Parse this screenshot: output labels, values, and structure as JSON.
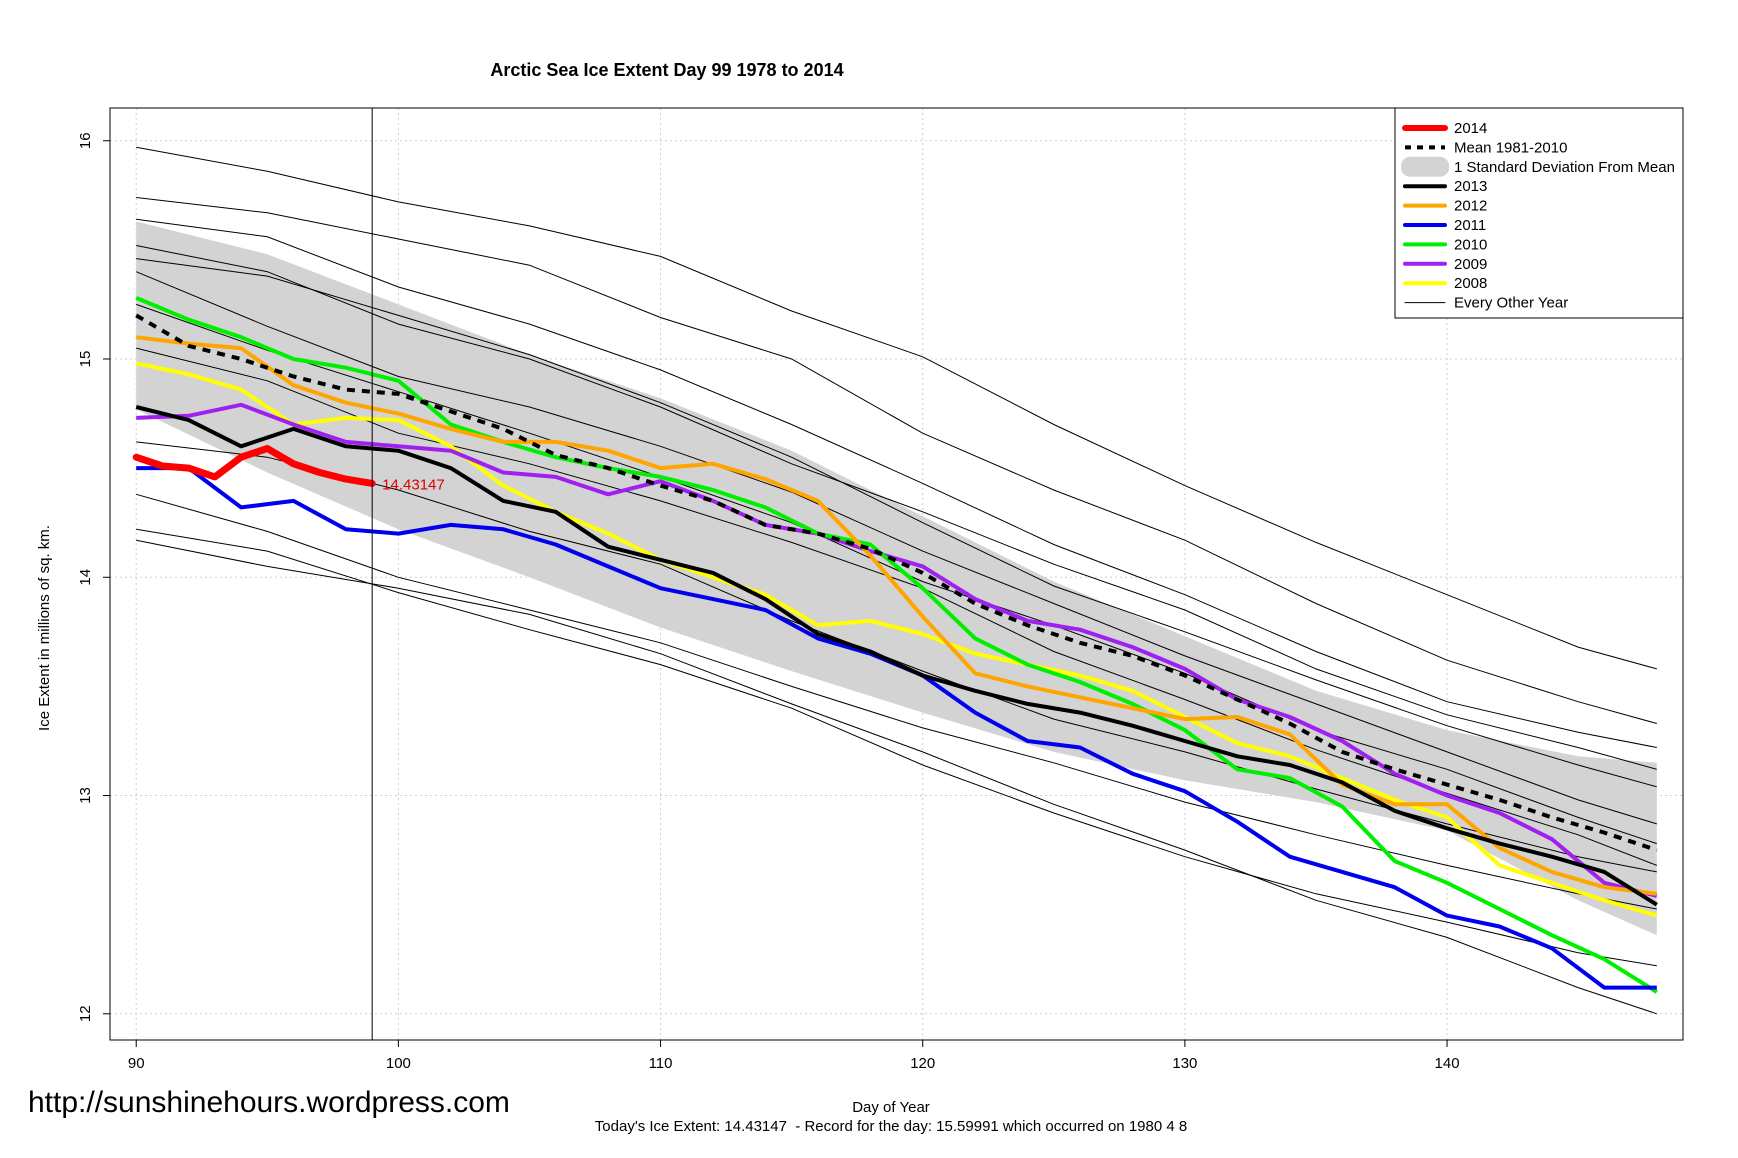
{
  "chart_data": {
    "type": "line",
    "title": "Arctic Sea Ice Extent Day 99 1978 to 2014",
    "xlabel": "Day of Year",
    "ylabel": "Ice Extent in millions of sq. km.",
    "xlim": [
      89,
      149
    ],
    "ylim": [
      11.88,
      16.15
    ],
    "x_ticks": [
      90,
      100,
      110,
      120,
      130,
      140
    ],
    "y_ticks": [
      12,
      13,
      14,
      15,
      16
    ],
    "grid": true,
    "legend_position": "top-right",
    "current_day": 99,
    "current_value_label": "14.43147",
    "footer": "Today's Ice Extent: 14.43147  - Record for the day: 15.59991 which occurred on 1980 4 8",
    "watermark": "http://sunshinehours.wordpress.com",
    "std_band": {
      "name": "1 Standard Deviation From Mean",
      "x": [
        90,
        95,
        100,
        105,
        110,
        115,
        120,
        125,
        130,
        135,
        140,
        145,
        148
      ],
      "upper": [
        15.63,
        15.48,
        15.25,
        15.02,
        14.82,
        14.58,
        14.28,
        13.98,
        13.73,
        13.48,
        13.3,
        13.18,
        13.15
      ],
      "lower": [
        14.77,
        14.48,
        14.22,
        14.0,
        13.77,
        13.57,
        13.38,
        13.2,
        13.07,
        12.97,
        12.84,
        12.52,
        12.36
      ]
    },
    "series": [
      {
        "name": "Every Other Year",
        "color": "#000000",
        "role": "other",
        "lines": [
          {
            "x": [
              90,
              95,
              100,
              105,
              110,
              115,
              120,
              125,
              130,
              135,
              140,
              145,
              148
            ],
            "y": [
              15.97,
              15.86,
              15.72,
              15.61,
              15.47,
              15.22,
              15.01,
              14.7,
              14.42,
              14.16,
              13.92,
              13.68,
              13.58
            ]
          },
          {
            "x": [
              90,
              95,
              100,
              105,
              110,
              115,
              120,
              125,
              130,
              135,
              140,
              145,
              148
            ],
            "y": [
              15.74,
              15.67,
              15.55,
              15.43,
              15.19,
              15.0,
              14.66,
              14.4,
              14.17,
              13.88,
              13.62,
              13.43,
              13.33
            ]
          },
          {
            "x": [
              90,
              95,
              100,
              105,
              110,
              115,
              120,
              125,
              130,
              135,
              140,
              145,
              148
            ],
            "y": [
              15.64,
              15.56,
              15.33,
              15.16,
              14.95,
              14.7,
              14.43,
              14.15,
              13.92,
              13.66,
              13.43,
              13.29,
              13.22
            ]
          },
          {
            "x": [
              90,
              95,
              100,
              105,
              110,
              115,
              120,
              125,
              130,
              135,
              140,
              145,
              148
            ],
            "y": [
              15.52,
              15.4,
              15.16,
              15.0,
              14.78,
              14.52,
              14.3,
              14.06,
              13.85,
              13.58,
              13.37,
              13.22,
              13.12
            ]
          },
          {
            "x": [
              90,
              95,
              100,
              105,
              110,
              115,
              120,
              125,
              130,
              135,
              140,
              145,
              148
            ],
            "y": [
              15.46,
              15.38,
              15.2,
              15.02,
              14.8,
              14.55,
              14.25,
              13.96,
              13.75,
              13.53,
              13.32,
              13.14,
              13.04
            ]
          },
          {
            "x": [
              90,
              95,
              100,
              105,
              110,
              115,
              120,
              125,
              130,
              135,
              140,
              145,
              148
            ],
            "y": [
              15.4,
              15.15,
              14.92,
              14.78,
              14.6,
              14.39,
              14.12,
              13.88,
              13.64,
              13.42,
              13.2,
              12.98,
              12.87
            ]
          },
          {
            "x": [
              90,
              95,
              100,
              105,
              110,
              115,
              120,
              125,
              130,
              135,
              140,
              145,
              148
            ],
            "y": [
              15.25,
              15.04,
              14.85,
              14.66,
              14.46,
              14.25,
              13.98,
              13.78,
              13.56,
              13.3,
              13.12,
              12.9,
              12.78
            ]
          },
          {
            "x": [
              90,
              95,
              100,
              105,
              110,
              115,
              120,
              125,
              130,
              135,
              140,
              145,
              148
            ],
            "y": [
              15.05,
              14.9,
              14.66,
              14.52,
              14.35,
              14.16,
              13.95,
              13.66,
              13.44,
              13.21,
              13.01,
              12.82,
              12.68
            ]
          },
          {
            "x": [
              90,
              95,
              100,
              105,
              110,
              115,
              120,
              125,
              130,
              135,
              140,
              145,
              148
            ],
            "y": [
              14.62,
              14.55,
              14.4,
              14.21,
              14.06,
              13.8,
              13.57,
              13.35,
              13.2,
              13.03,
              12.87,
              12.72,
              12.65
            ]
          },
          {
            "x": [
              90,
              95,
              100,
              105,
              110,
              115,
              120,
              125,
              130,
              135,
              140,
              145,
              148
            ],
            "y": [
              14.38,
              14.21,
              14.0,
              13.85,
              13.7,
              13.5,
              13.31,
              13.15,
              12.97,
              12.82,
              12.68,
              12.55,
              12.48
            ]
          },
          {
            "x": [
              90,
              95,
              100,
              105,
              110,
              115,
              120,
              125,
              130,
              135,
              140,
              145,
              148
            ],
            "y": [
              14.22,
              14.12,
              13.93,
              13.76,
              13.6,
              13.4,
              13.14,
              12.92,
              12.72,
              12.55,
              12.42,
              12.28,
              12.22
            ]
          },
          {
            "x": [
              90,
              95,
              100,
              105,
              110,
              115,
              120,
              125,
              130,
              135,
              140,
              145,
              148
            ],
            "y": [
              14.17,
              14.05,
              13.95,
              13.83,
              13.65,
              13.42,
              13.2,
              12.96,
              12.75,
              12.52,
              12.35,
              12.12,
              12.0
            ]
          }
        ]
      },
      {
        "name": "Mean 1981-2010",
        "color": "#000000",
        "role": "mean",
        "x": [
          90,
          92,
          94,
          96,
          98,
          100,
          102,
          104,
          106,
          108,
          110,
          112,
          114,
          116,
          118,
          120,
          122,
          124,
          126,
          128,
          130,
          132,
          134,
          136,
          138,
          140,
          142,
          144,
          146,
          148
        ],
        "y": [
          15.2,
          15.06,
          15.0,
          14.92,
          14.86,
          14.84,
          14.76,
          14.68,
          14.56,
          14.5,
          14.42,
          14.35,
          14.24,
          14.2,
          14.13,
          14.02,
          13.88,
          13.78,
          13.7,
          13.64,
          13.55,
          13.44,
          13.33,
          13.2,
          13.12,
          13.05,
          12.98,
          12.9,
          12.83,
          12.75
        ]
      },
      {
        "name": "2008",
        "color": "#ffff00",
        "role": "highlight",
        "x": [
          90,
          92,
          94,
          96,
          98,
          100,
          102,
          104,
          106,
          108,
          110,
          112,
          114,
          116,
          118,
          120,
          122,
          124,
          126,
          128,
          130,
          132,
          134,
          136,
          138,
          140,
          142,
          144,
          146,
          148
        ],
        "y": [
          14.98,
          14.93,
          14.86,
          14.7,
          14.73,
          14.72,
          14.6,
          14.42,
          14.3,
          14.2,
          14.08,
          14.0,
          13.92,
          13.78,
          13.8,
          13.74,
          13.65,
          13.6,
          13.55,
          13.48,
          13.36,
          13.24,
          13.18,
          13.08,
          12.98,
          12.9,
          12.68,
          12.6,
          12.52,
          12.45
        ]
      },
      {
        "name": "2009",
        "color": "#a020f0",
        "role": "highlight",
        "x": [
          90,
          92,
          94,
          96,
          98,
          100,
          102,
          104,
          106,
          108,
          110,
          112,
          114,
          116,
          118,
          120,
          122,
          124,
          126,
          128,
          130,
          132,
          134,
          136,
          138,
          140,
          142,
          144,
          146,
          148
        ],
        "y": [
          14.73,
          14.74,
          14.79,
          14.7,
          14.62,
          14.6,
          14.58,
          14.48,
          14.46,
          14.38,
          14.44,
          14.35,
          14.24,
          14.2,
          14.12,
          14.05,
          13.9,
          13.8,
          13.76,
          13.68,
          13.58,
          13.44,
          13.36,
          13.25,
          13.1,
          13.0,
          12.92,
          12.8,
          12.6,
          12.54
        ]
      },
      {
        "name": "2010",
        "color": "#00ee00",
        "role": "highlight",
        "x": [
          90,
          92,
          94,
          96,
          98,
          100,
          102,
          104,
          106,
          108,
          110,
          112,
          114,
          116,
          118,
          120,
          122,
          124,
          126,
          128,
          130,
          132,
          134,
          136,
          138,
          140,
          142,
          144,
          146,
          148
        ],
        "y": [
          15.28,
          15.18,
          15.1,
          15.0,
          14.96,
          14.9,
          14.7,
          14.62,
          14.55,
          14.5,
          14.46,
          14.4,
          14.32,
          14.2,
          14.15,
          13.95,
          13.72,
          13.6,
          13.52,
          13.42,
          13.3,
          13.12,
          13.08,
          12.95,
          12.7,
          12.6,
          12.48,
          12.36,
          12.25,
          12.1
        ]
      },
      {
        "name": "2011",
        "color": "#0000ee",
        "role": "highlight",
        "x": [
          90,
          92,
          94,
          96,
          98,
          100,
          102,
          104,
          106,
          108,
          110,
          112,
          114,
          116,
          118,
          120,
          122,
          124,
          126,
          128,
          130,
          132,
          134,
          136,
          138,
          140,
          142,
          144,
          146,
          148
        ],
        "y": [
          14.5,
          14.5,
          14.32,
          14.35,
          14.22,
          14.2,
          14.24,
          14.22,
          14.15,
          14.05,
          13.95,
          13.9,
          13.85,
          13.72,
          13.65,
          13.55,
          13.38,
          13.25,
          13.22,
          13.1,
          13.02,
          12.88,
          12.72,
          12.65,
          12.58,
          12.45,
          12.4,
          12.3,
          12.12,
          12.12
        ]
      },
      {
        "name": "2012",
        "color": "#ffa500",
        "role": "highlight",
        "x": [
          90,
          92,
          94,
          96,
          98,
          100,
          102,
          104,
          106,
          108,
          110,
          112,
          114,
          116,
          118,
          120,
          122,
          124,
          126,
          128,
          130,
          132,
          134,
          136,
          138,
          140,
          142,
          144,
          146,
          148
        ],
        "y": [
          15.1,
          15.07,
          15.05,
          14.88,
          14.8,
          14.75,
          14.68,
          14.62,
          14.62,
          14.58,
          14.5,
          14.52,
          14.45,
          14.35,
          14.1,
          13.82,
          13.56,
          13.5,
          13.45,
          13.4,
          13.35,
          13.36,
          13.28,
          13.05,
          12.96,
          12.96,
          12.76,
          12.65,
          12.58,
          12.55
        ]
      },
      {
        "name": "2013",
        "color": "#000000",
        "role": "highlight",
        "x": [
          90,
          92,
          94,
          96,
          98,
          100,
          102,
          104,
          106,
          108,
          110,
          112,
          114,
          116,
          118,
          120,
          122,
          124,
          126,
          128,
          130,
          132,
          134,
          136,
          138,
          140,
          142,
          144,
          146,
          148
        ],
        "y": [
          14.78,
          14.72,
          14.6,
          14.68,
          14.6,
          14.58,
          14.5,
          14.35,
          14.3,
          14.14,
          14.08,
          14.02,
          13.9,
          13.74,
          13.66,
          13.55,
          13.48,
          13.42,
          13.38,
          13.32,
          13.25,
          13.18,
          13.14,
          13.06,
          12.93,
          12.85,
          12.78,
          12.72,
          12.65,
          12.5
        ]
      },
      {
        "name": "2014",
        "color": "#ff0000",
        "role": "current",
        "x": [
          90,
          91,
          92,
          93,
          94,
          95,
          96,
          97,
          98,
          99
        ],
        "y": [
          14.55,
          14.51,
          14.5,
          14.46,
          14.55,
          14.59,
          14.52,
          14.48,
          14.45,
          14.43
        ]
      }
    ],
    "legend": [
      {
        "label": "2014",
        "kind": "line",
        "color": "#ff0000",
        "width": 6
      },
      {
        "label": "Mean 1981-2010",
        "kind": "dashed",
        "color": "#000000",
        "width": 4
      },
      {
        "label": "1 Standard Deviation From Mean",
        "kind": "box",
        "color": "#d3d3d3"
      },
      {
        "label": "2013",
        "kind": "line",
        "color": "#000000",
        "width": 4
      },
      {
        "label": "2012",
        "kind": "line",
        "color": "#ffa500",
        "width": 4
      },
      {
        "label": "2011",
        "kind": "line",
        "color": "#0000ee",
        "width": 4
      },
      {
        "label": "2010",
        "kind": "line",
        "color": "#00ee00",
        "width": 4
      },
      {
        "label": "2009",
        "kind": "line",
        "color": "#a020f0",
        "width": 4
      },
      {
        "label": "2008",
        "kind": "line",
        "color": "#ffff00",
        "width": 4
      },
      {
        "label": "Every Other Year",
        "kind": "line",
        "color": "#000000",
        "width": 1
      }
    ]
  }
}
